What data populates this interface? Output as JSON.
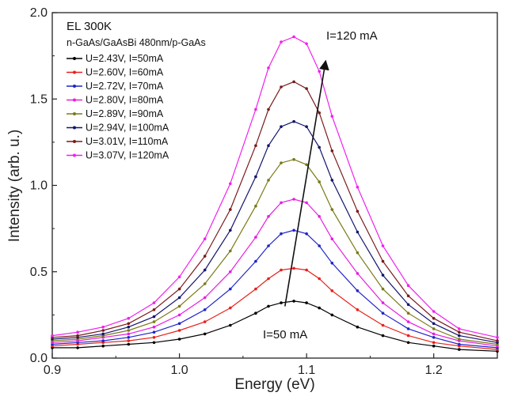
{
  "chart_data": {
    "type": "scatter",
    "xlabel": "Energy (eV)",
    "ylabel": "Intensity (arb. u.)",
    "xlim": [
      0.9,
      1.25
    ],
    "ylim": [
      0.0,
      2.0
    ],
    "xticks": [
      "0.9",
      "1.0",
      "1.1",
      "1.2"
    ],
    "xtick_values": [
      0.9,
      1.0,
      1.1,
      1.2
    ],
    "yticks": [
      "0.0",
      "0.5",
      "1.0",
      "1.5",
      "2.0"
    ],
    "ytick_values": [
      0.0,
      0.5,
      1.0,
      1.5,
      2.0
    ],
    "grid": false,
    "legend_placement": "top-left",
    "legend_title": "EL 300K",
    "legend_subtitle": "n-GaAs/GaAsBi 480nm/p-GaAs",
    "x": [
      0.9,
      0.92,
      0.94,
      0.96,
      0.98,
      1.0,
      1.02,
      1.04,
      1.06,
      1.07,
      1.08,
      1.09,
      1.1,
      1.11,
      1.12,
      1.14,
      1.16,
      1.18,
      1.2,
      1.22,
      1.25
    ],
    "series": [
      {
        "name": "U=2.43V, I=50mA",
        "color": "#000000",
        "values": [
          0.06,
          0.06,
          0.07,
          0.08,
          0.09,
          0.11,
          0.14,
          0.19,
          0.26,
          0.3,
          0.32,
          0.33,
          0.32,
          0.29,
          0.25,
          0.18,
          0.13,
          0.09,
          0.07,
          0.05,
          0.04
        ]
      },
      {
        "name": "U=2.60V, I=60mA",
        "color": "#e8201a",
        "values": [
          0.07,
          0.08,
          0.09,
          0.1,
          0.12,
          0.16,
          0.21,
          0.29,
          0.4,
          0.46,
          0.51,
          0.52,
          0.51,
          0.46,
          0.39,
          0.28,
          0.19,
          0.13,
          0.09,
          0.07,
          0.05
        ]
      },
      {
        "name": "U=2.72V, I=70mA",
        "color": "#1f24c8",
        "values": [
          0.08,
          0.09,
          0.1,
          0.12,
          0.15,
          0.2,
          0.28,
          0.4,
          0.56,
          0.65,
          0.72,
          0.74,
          0.72,
          0.65,
          0.55,
          0.39,
          0.26,
          0.17,
          0.12,
          0.08,
          0.06
        ]
      },
      {
        "name": "U=2.80V, I=80mA",
        "color": "#e81de0",
        "values": [
          0.09,
          0.1,
          0.12,
          0.14,
          0.18,
          0.25,
          0.35,
          0.5,
          0.7,
          0.82,
          0.9,
          0.92,
          0.9,
          0.82,
          0.69,
          0.49,
          0.32,
          0.21,
          0.14,
          0.1,
          0.07
        ]
      },
      {
        "name": "U=2.89V, I=90mA",
        "color": "#7a7a18",
        "values": [
          0.1,
          0.11,
          0.13,
          0.16,
          0.21,
          0.3,
          0.43,
          0.62,
          0.88,
          1.03,
          1.13,
          1.15,
          1.12,
          1.02,
          0.86,
          0.61,
          0.4,
          0.26,
          0.17,
          0.11,
          0.08
        ]
      },
      {
        "name": "U=2.94V, I=100mA",
        "color": "#14146e",
        "values": [
          0.11,
          0.12,
          0.14,
          0.18,
          0.24,
          0.35,
          0.51,
          0.74,
          1.05,
          1.23,
          1.34,
          1.37,
          1.34,
          1.22,
          1.03,
          0.73,
          0.48,
          0.31,
          0.2,
          0.13,
          0.09
        ]
      },
      {
        "name": "U=3.01V, I=110mA",
        "color": "#7a1a1a",
        "values": [
          0.12,
          0.13,
          0.16,
          0.2,
          0.28,
          0.4,
          0.59,
          0.86,
          1.23,
          1.44,
          1.57,
          1.6,
          1.56,
          1.42,
          1.2,
          0.85,
          0.56,
          0.36,
          0.23,
          0.15,
          0.1
        ]
      },
      {
        "name": "U=3.07V, I=120mA",
        "color": "#f020f0",
        "values": [
          0.13,
          0.15,
          0.18,
          0.23,
          0.32,
          0.47,
          0.69,
          1.01,
          1.44,
          1.68,
          1.83,
          1.86,
          1.82,
          1.66,
          1.4,
          0.99,
          0.65,
          0.42,
          0.27,
          0.17,
          0.12
        ]
      }
    ],
    "annotations": {
      "top_label": "I=120 mA",
      "bottom_label": "I=50 mA",
      "arrow_from": {
        "x": 1.083,
        "y": 0.3
      },
      "arrow_to": {
        "x": 1.115,
        "y": 1.72
      }
    }
  }
}
